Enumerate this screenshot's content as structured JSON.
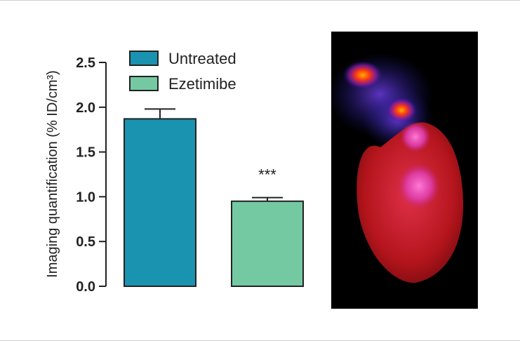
{
  "chart_data": {
    "type": "bar",
    "categories": [
      "Untreated",
      "Ezetimibe"
    ],
    "values": [
      1.87,
      0.95
    ],
    "errors": [
      0.11,
      0.04
    ],
    "colors": [
      "#1a93b0",
      "#74c9a3"
    ],
    "ylabel": "Imaging quantification (% ID/cm³)",
    "xlabel": "",
    "title": "",
    "ylim": [
      0,
      2.5
    ],
    "yticks": [
      "0.0",
      "0.5",
      "1.0",
      "1.5",
      "2.0",
      "2.5"
    ],
    "legend": [
      {
        "label": "Untreated",
        "color": "#1a93b0"
      },
      {
        "label": "Ezetimibe",
        "color": "#74c9a3"
      }
    ],
    "legend_position": "top",
    "annotations": [
      {
        "category": "Ezetimibe",
        "text": "***"
      }
    ],
    "grid": false
  },
  "image": {
    "description": "Fluorescence heart image",
    "name": "heart-imaging-panel"
  }
}
